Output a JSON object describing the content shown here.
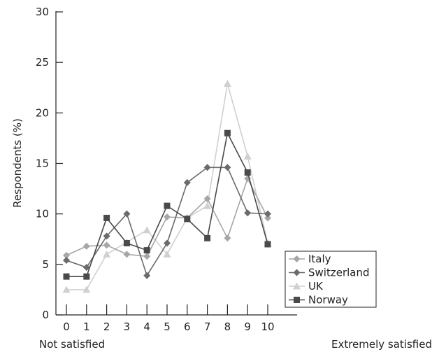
{
  "chart_data": {
    "type": "line",
    "title": "",
    "xlabel": "",
    "ylabel": "Respondents (%)",
    "x": [
      0,
      1,
      2,
      3,
      4,
      5,
      6,
      7,
      8,
      9,
      10
    ],
    "xlim": [
      0,
      10
    ],
    "ylim": [
      0,
      30
    ],
    "yticks": [
      0,
      5,
      10,
      15,
      20,
      25,
      30
    ],
    "x_end_labels": {
      "left": "Not satisfied",
      "right": "Extremely satisfied"
    },
    "grid": false,
    "legend_position": "bottom-right",
    "series": [
      {
        "name": "Italy",
        "marker": "diamond",
        "color": "#a6a6a6",
        "values": [
          5.9,
          6.8,
          6.9,
          6.0,
          5.8,
          9.7,
          9.6,
          11.5,
          7.6,
          13.5,
          9.6
        ]
      },
      {
        "name": "Switzerland",
        "marker": "diamond",
        "color": "#6b6b6b",
        "values": [
          5.4,
          4.7,
          7.8,
          10.0,
          3.9,
          7.1,
          13.1,
          14.6,
          14.6,
          10.1,
          10.0
        ]
      },
      {
        "name": "UK",
        "marker": "triangle",
        "color": "#d0d0d0",
        "values": [
          2.5,
          2.5,
          6.0,
          7.2,
          8.4,
          6.0,
          9.6,
          10.8,
          22.9,
          15.7,
          7.1
        ]
      },
      {
        "name": "Norway",
        "marker": "square",
        "color": "#4a4a4a",
        "values": [
          3.8,
          3.8,
          9.6,
          7.1,
          6.4,
          10.8,
          9.5,
          7.6,
          18.0,
          14.1,
          7.0
        ]
      }
    ]
  }
}
